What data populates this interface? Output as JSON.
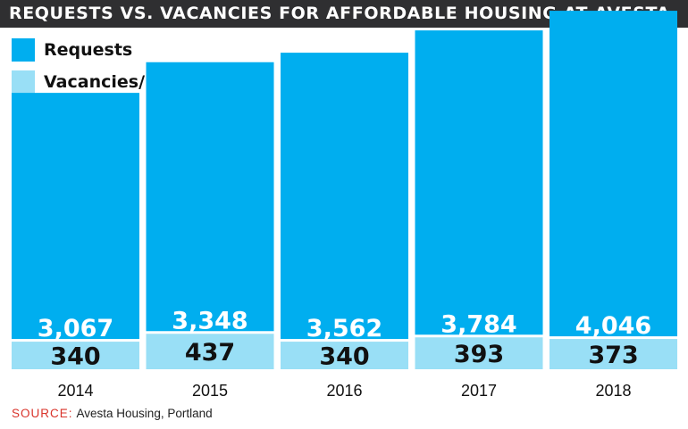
{
  "header": {
    "title": "REQUESTS VS. VACANCIES FOR AFFORDABLE HOUSING AT AVESTA"
  },
  "legend": {
    "items": [
      {
        "label": "Requests",
        "color": "#00aeef"
      },
      {
        "label": "Vacancies/Move-ins",
        "color": "#99dff6"
      }
    ]
  },
  "source": {
    "key": "SOURCE:",
    "text": "Avesta Housing, Portland"
  },
  "chart_data": {
    "type": "bar",
    "stacked": true,
    "categories": [
      "2014",
      "2015",
      "2016",
      "2017",
      "2018"
    ],
    "series": [
      {
        "name": "Vacancies/Move-ins",
        "color": "#99dff6",
        "values": [
          340,
          437,
          340,
          393,
          373
        ],
        "labels": [
          "340",
          "437",
          "340",
          "393",
          "373"
        ]
      },
      {
        "name": "Requests",
        "color": "#00aeef",
        "values": [
          3067,
          3348,
          3562,
          3784,
          4046
        ],
        "labels": [
          "3,067",
          "3,348",
          "3,562",
          "3,784",
          "4,046"
        ]
      }
    ],
    "grid": false,
    "legend_position": "top-left"
  }
}
